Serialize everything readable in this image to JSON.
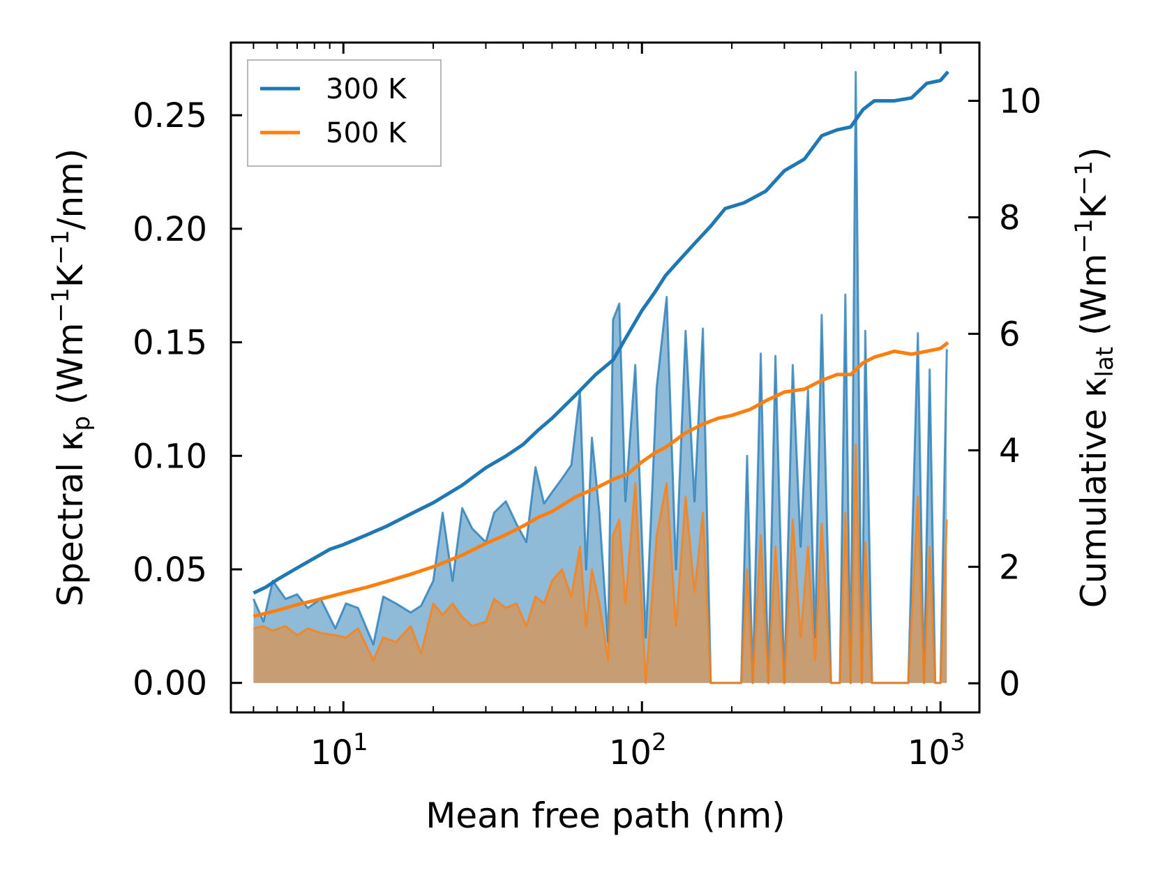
{
  "chart_data": {
    "type": "line",
    "x_scale": "log",
    "xlabel": "Mean free path (nm)",
    "ylabel_left": {
      "base": "Spectral κ",
      "sub": "p",
      "units": "(Wm",
      "sup1": "−1",
      "k": "K",
      "sup2": "−1",
      "tail": "/nm)"
    },
    "ylabel_right": {
      "base": "Cumulative κ",
      "sub": "lat",
      "units": "(Wm",
      "sup1": "−1",
      "k": "K",
      "sup2": "−1",
      "tail": ")"
    },
    "xlim": [
      4.2,
      1350
    ],
    "ylim_left": [
      -0.013,
      0.282
    ],
    "ylim_right": [
      -0.5,
      11.0
    ],
    "x_ticks": [
      {
        "value": 10,
        "base": "10",
        "exp": "1"
      },
      {
        "value": 100,
        "base": "10",
        "exp": "2"
      },
      {
        "value": 1000,
        "base": "10",
        "exp": "3"
      }
    ],
    "y_ticks_left": [
      "0.00",
      "0.05",
      "0.10",
      "0.15",
      "0.20",
      "0.25"
    ],
    "y_ticks_left_values": [
      0,
      0.05,
      0.1,
      0.15,
      0.2,
      0.25
    ],
    "y_ticks_right": [
      "0",
      "2",
      "4",
      "6",
      "8",
      "10"
    ],
    "y_ticks_right_values": [
      0,
      2,
      4,
      6,
      8,
      10
    ],
    "legend": {
      "position": "top-left",
      "entries": [
        {
          "label": "300 K",
          "color": "#1f77b4"
        },
        {
          "label": "500 K",
          "color": "#ff7f0e"
        }
      ]
    },
    "colors": {
      "blue": "#1f77b4",
      "orange": "#ff7f0e",
      "blue_fill": "#1f77b4",
      "orange_fill": "#ff7f0e"
    },
    "spectral_300K": {
      "x": [
        5,
        5.4,
        5.8,
        6.4,
        7,
        7.6,
        8.4,
        9.4,
        10.2,
        11.2,
        12.6,
        13.6,
        15,
        16.8,
        18.2,
        20,
        21.5,
        23.2,
        25,
        27,
        30,
        32,
        35,
        38,
        41,
        44,
        47,
        50,
        54,
        58,
        62,
        65,
        68,
        72,
        77,
        80,
        84,
        88,
        95,
        103,
        112,
        121,
        130,
        140,
        150,
        160,
        170,
        180,
        190,
        200,
        215,
        225,
        235,
        250,
        265,
        280,
        300,
        320,
        340,
        360,
        380,
        400,
        430,
        460,
        480,
        500,
        520,
        545,
        560,
        590,
        630,
        650,
        700,
        780,
        840,
        880,
        920,
        960,
        1000,
        1050
      ],
      "y": [
        0.037,
        0.027,
        0.045,
        0.037,
        0.039,
        0.033,
        0.037,
        0.024,
        0.035,
        0.033,
        0.017,
        0.038,
        0.035,
        0.031,
        0.034,
        0.045,
        0.075,
        0.045,
        0.077,
        0.068,
        0.062,
        0.075,
        0.08,
        0.07,
        0.062,
        0.095,
        0.079,
        0.084,
        0.09,
        0.096,
        0.128,
        0.05,
        0.108,
        0.075,
        0.018,
        0.16,
        0.167,
        0.08,
        0.14,
        0.02,
        0.13,
        0.17,
        0.05,
        0.155,
        0.08,
        0.156,
        0.0,
        0.0,
        0.0,
        0.0,
        0.0,
        0.1,
        0.0,
        0.145,
        0.0,
        0.144,
        0.0,
        0.14,
        0.06,
        0.129,
        0.02,
        0.162,
        0.0,
        0.0,
        0.171,
        0.0,
        0.269,
        0.0,
        0.155,
        0.0,
        0.0,
        0.0,
        0.0,
        0.0,
        0.154,
        0.0,
        0.138,
        0.0,
        0.0,
        0.147
      ]
    },
    "spectral_500K": {
      "x": [
        5,
        5.4,
        5.8,
        6.4,
        7,
        7.6,
        8.4,
        9.4,
        10.2,
        11.2,
        12.6,
        13.6,
        15,
        16.8,
        18.2,
        20,
        21.5,
        23.2,
        25,
        27,
        30,
        32,
        35,
        38,
        41,
        44,
        47,
        50,
        54,
        58,
        62,
        65,
        68,
        72,
        77,
        80,
        84,
        88,
        95,
        103,
        112,
        121,
        130,
        140,
        150,
        160,
        170,
        180,
        190,
        200,
        215,
        225,
        235,
        250,
        265,
        280,
        300,
        320,
        340,
        360,
        380,
        400,
        430,
        460,
        480,
        500,
        520,
        545,
        560,
        590,
        630,
        650,
        700,
        780,
        840,
        880,
        920,
        960,
        1000,
        1050
      ],
      "y": [
        0.024,
        0.025,
        0.023,
        0.025,
        0.021,
        0.024,
        0.022,
        0.021,
        0.02,
        0.024,
        0.01,
        0.02,
        0.018,
        0.025,
        0.013,
        0.035,
        0.03,
        0.035,
        0.029,
        0.025,
        0.027,
        0.037,
        0.033,
        0.035,
        0.025,
        0.038,
        0.035,
        0.045,
        0.05,
        0.038,
        0.06,
        0.025,
        0.05,
        0.035,
        0.01,
        0.065,
        0.072,
        0.035,
        0.088,
        0.0,
        0.065,
        0.088,
        0.025,
        0.082,
        0.04,
        0.075,
        0.0,
        0.0,
        0.0,
        0.0,
        0.0,
        0.05,
        0.0,
        0.065,
        0.0,
        0.06,
        0.0,
        0.072,
        0.02,
        0.06,
        0.01,
        0.07,
        0.0,
        0.0,
        0.075,
        0.0,
        0.105,
        0.0,
        0.062,
        0.0,
        0.0,
        0.0,
        0.0,
        0.0,
        0.082,
        0.0,
        0.06,
        0.0,
        0.0,
        0.072
      ]
    },
    "cumulative_300K": {
      "x": [
        5,
        5.5,
        6,
        7,
        8,
        9,
        10,
        12,
        14,
        17,
        20,
        25,
        30,
        35,
        40,
        45,
        50,
        60,
        70,
        80,
        90,
        100,
        110,
        120,
        130,
        150,
        170,
        190,
        220,
        260,
        300,
        350,
        400,
        450,
        500,
        550,
        600,
        700,
        800,
        900,
        1000,
        1060
      ],
      "y": [
        1.55,
        1.65,
        1.78,
        1.98,
        2.15,
        2.3,
        2.38,
        2.55,
        2.7,
        2.92,
        3.1,
        3.4,
        3.7,
        3.9,
        4.1,
        4.35,
        4.55,
        4.95,
        5.3,
        5.55,
        6.0,
        6.4,
        6.7,
        7.0,
        7.2,
        7.55,
        7.85,
        8.15,
        8.25,
        8.45,
        8.8,
        9.0,
        9.4,
        9.5,
        9.55,
        9.85,
        10.0,
        10.0,
        10.05,
        10.3,
        10.35,
        10.5
      ]
    },
    "cumulative_500K": {
      "x": [
        5,
        6,
        7,
        8,
        10,
        12,
        14,
        17,
        20,
        25,
        30,
        35,
        40,
        45,
        50,
        60,
        70,
        80,
        90,
        100,
        110,
        120,
        140,
        160,
        180,
        200,
        230,
        260,
        300,
        350,
        400,
        450,
        500,
        550,
        600,
        650,
        700,
        800,
        900,
        1000,
        1060
      ],
      "y": [
        1.15,
        1.25,
        1.35,
        1.42,
        1.55,
        1.65,
        1.75,
        1.88,
        2.0,
        2.2,
        2.4,
        2.55,
        2.7,
        2.85,
        2.95,
        3.2,
        3.35,
        3.5,
        3.6,
        3.8,
        3.95,
        4.05,
        4.3,
        4.45,
        4.55,
        4.6,
        4.7,
        4.85,
        5.0,
        5.05,
        5.2,
        5.3,
        5.3,
        5.5,
        5.6,
        5.65,
        5.7,
        5.65,
        5.7,
        5.75,
        5.85
      ]
    }
  }
}
